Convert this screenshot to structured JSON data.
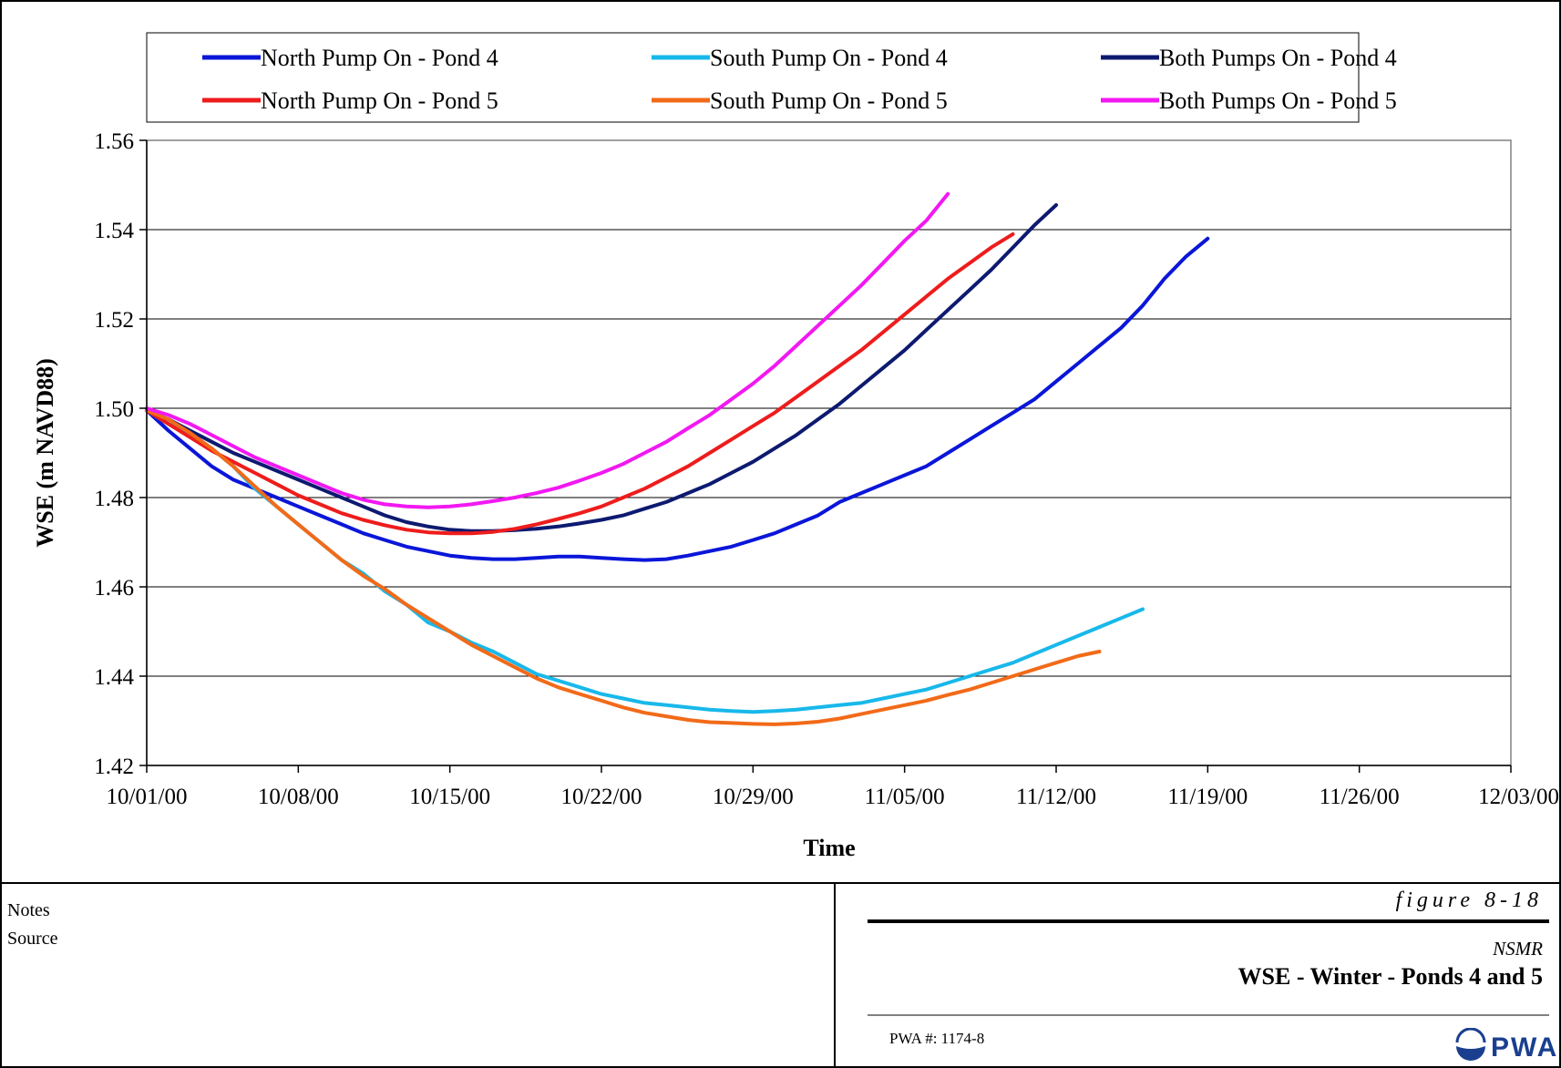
{
  "chart_data": {
    "type": "line",
    "xlabel": "Time",
    "ylabel": "WSE (m NAVD88)",
    "x_ticks": [
      "10/01/00",
      "10/08/00",
      "10/15/00",
      "10/22/00",
      "10/29/00",
      "11/05/00",
      "11/12/00",
      "11/19/00",
      "11/26/00",
      "12/03/00"
    ],
    "x_range_days": [
      0,
      63
    ],
    "ylim": [
      1.42,
      1.56
    ],
    "y_ticks": [
      "1.42",
      "1.44",
      "1.46",
      "1.48",
      "1.50",
      "1.52",
      "1.54",
      "1.56"
    ],
    "grid": "horizontal",
    "legend_position": "top",
    "series": [
      {
        "name": "North Pump On - Pond 4",
        "color": "#0a16d8",
        "x": [
          0,
          1,
          2,
          3,
          4,
          5,
          6,
          7,
          8,
          9,
          10,
          11,
          12,
          13,
          14,
          15,
          16,
          17,
          18,
          19,
          20,
          21,
          22,
          23,
          24,
          25,
          26,
          27,
          28,
          29,
          30,
          31,
          32,
          33,
          34,
          35,
          36,
          37,
          38,
          39,
          40,
          41,
          42,
          43,
          44,
          45,
          46,
          47,
          48,
          49,
          50,
          51,
          52,
          53,
          54,
          55,
          56,
          57,
          58,
          59,
          60,
          61,
          62,
          63
        ],
        "y": [
          1.4995,
          1.495,
          1.491,
          1.487,
          1.484,
          1.482,
          1.48,
          1.478,
          1.476,
          1.474,
          1.472,
          1.4705,
          1.469,
          1.468,
          1.467,
          1.4665,
          1.4662,
          1.4662,
          1.4665,
          1.4668,
          1.4668,
          1.4665,
          1.4662,
          1.466,
          1.4662,
          1.467,
          1.468,
          1.469,
          1.4705,
          1.472,
          1.474,
          1.476,
          1.479,
          1.481,
          1.483,
          1.485,
          1.487,
          1.49,
          1.493,
          1.496,
          1.499,
          1.502,
          1.506,
          1.51,
          1.514,
          1.518,
          1.523,
          1.529,
          1.534,
          1.538,
          null,
          null,
          null,
          null,
          null,
          null,
          null,
          null,
          null,
          null,
          null,
          null,
          null,
          null
        ]
      },
      {
        "name": "South Pump On - Pond 4",
        "color": "#18b8ea",
        "x": [
          0,
          1,
          2,
          3,
          4,
          5,
          6,
          7,
          8,
          9,
          10,
          11,
          12,
          13,
          14,
          15,
          16,
          17,
          18,
          19,
          20,
          21,
          22,
          23,
          24,
          25,
          26,
          27,
          28,
          29,
          30,
          31,
          32,
          33,
          34,
          35,
          36,
          37,
          38,
          39,
          40,
          41,
          42,
          43,
          44,
          45,
          46,
          47,
          48,
          49,
          50,
          51,
          52,
          53,
          54,
          55,
          56,
          57,
          58,
          59,
          60,
          61,
          62,
          63
        ],
        "y": [
          1.4995,
          1.4965,
          1.494,
          1.491,
          1.487,
          1.482,
          1.478,
          1.474,
          1.47,
          1.466,
          1.463,
          1.459,
          1.456,
          1.452,
          1.45,
          1.4475,
          1.4455,
          1.443,
          1.4405,
          1.439,
          1.4375,
          1.436,
          1.435,
          1.434,
          1.4335,
          1.433,
          1.4325,
          1.4322,
          1.432,
          1.4322,
          1.4325,
          1.433,
          1.4335,
          1.434,
          1.435,
          1.436,
          1.437,
          1.4385,
          1.44,
          1.4415,
          1.443,
          1.445,
          1.447,
          1.449,
          1.451,
          1.453,
          1.455,
          null,
          null,
          null,
          null,
          null,
          null,
          null,
          null,
          null,
          null,
          null,
          null,
          null,
          null,
          null,
          null,
          null
        ]
      },
      {
        "name": "Both Pumps On - Pond 4",
        "color": "#0d1a70",
        "x": [
          0,
          1,
          2,
          3,
          4,
          5,
          6,
          7,
          8,
          9,
          10,
          11,
          12,
          13,
          14,
          15,
          16,
          17,
          18,
          19,
          20,
          21,
          22,
          23,
          24,
          25,
          26,
          27,
          28,
          29,
          30,
          31,
          32,
          33,
          34,
          35,
          36,
          37,
          38,
          39,
          40,
          41,
          42,
          43,
          44,
          45,
          46,
          47,
          48,
          49,
          50,
          51,
          52,
          53,
          54,
          55,
          56,
          57,
          58,
          59,
          60,
          61,
          62,
          63
        ],
        "y": [
          1.4995,
          1.4975,
          1.495,
          1.4925,
          1.49,
          1.488,
          1.486,
          1.484,
          1.482,
          1.48,
          1.478,
          1.476,
          1.4745,
          1.4735,
          1.4728,
          1.4725,
          1.4725,
          1.4727,
          1.473,
          1.4735,
          1.4742,
          1.475,
          1.476,
          1.4775,
          1.479,
          1.481,
          1.483,
          1.4855,
          1.488,
          1.491,
          1.494,
          1.4975,
          1.501,
          1.505,
          1.509,
          1.513,
          1.5175,
          1.522,
          1.5265,
          1.531,
          1.536,
          1.541,
          1.5455,
          null,
          null,
          null,
          null,
          null,
          null,
          null,
          null,
          null,
          null,
          null,
          null,
          null,
          null,
          null,
          null,
          null,
          null,
          null,
          null,
          null
        ]
      },
      {
        "name": "North Pump On - Pond 5",
        "color": "#ee1c1c",
        "x": [
          0,
          1,
          2,
          3,
          4,
          5,
          6,
          7,
          8,
          9,
          10,
          11,
          12,
          13,
          14,
          15,
          16,
          17,
          18,
          19,
          20,
          21,
          22,
          23,
          24,
          25,
          26,
          27,
          28,
          29,
          30,
          31,
          32,
          33,
          34,
          35,
          36,
          37,
          38,
          39,
          40,
          41,
          42,
          43,
          44,
          45,
          46,
          47,
          48,
          49,
          50,
          51,
          52,
          53,
          54,
          55,
          56,
          57,
          58,
          59,
          60,
          61,
          62,
          63
        ],
        "y": [
          1.4995,
          1.4965,
          1.4935,
          1.4905,
          1.488,
          1.4855,
          1.483,
          1.4805,
          1.4785,
          1.4765,
          1.475,
          1.4738,
          1.4728,
          1.4722,
          1.472,
          1.472,
          1.4723,
          1.473,
          1.474,
          1.4752,
          1.4765,
          1.478,
          1.48,
          1.482,
          1.4845,
          1.487,
          1.49,
          1.493,
          1.496,
          1.499,
          1.5025,
          1.506,
          1.5095,
          1.513,
          1.517,
          1.521,
          1.525,
          1.529,
          1.5325,
          1.536,
          1.539,
          null,
          null,
          null,
          null,
          null,
          null,
          null,
          null,
          null,
          null,
          null,
          null,
          null,
          null,
          null,
          null,
          null,
          null,
          null,
          null,
          null,
          null,
          null
        ]
      },
      {
        "name": "South Pump On - Pond 5",
        "color": "#f26a18",
        "x": [
          0,
          1,
          2,
          3,
          4,
          5,
          6,
          7,
          8,
          9,
          10,
          11,
          12,
          13,
          14,
          15,
          16,
          17,
          18,
          19,
          20,
          21,
          22,
          23,
          24,
          25,
          26,
          27,
          28,
          29,
          30,
          31,
          32,
          33,
          34,
          35,
          36,
          37,
          38,
          39,
          40,
          41,
          42,
          43,
          44,
          45,
          46,
          47,
          48,
          49,
          50,
          51,
          52,
          53,
          54,
          55,
          56,
          57,
          58,
          59,
          60,
          61,
          62,
          63
        ],
        "y": [
          1.4995,
          1.4975,
          1.4945,
          1.491,
          1.487,
          1.4825,
          1.478,
          1.474,
          1.47,
          1.466,
          1.4625,
          1.4595,
          1.456,
          1.453,
          1.45,
          1.447,
          1.4445,
          1.442,
          1.4395,
          1.4375,
          1.436,
          1.4345,
          1.433,
          1.4318,
          1.431,
          1.4302,
          1.4297,
          1.4295,
          1.4293,
          1.4292,
          1.4294,
          1.4298,
          1.4305,
          1.4315,
          1.4325,
          1.4335,
          1.4345,
          1.4358,
          1.437,
          1.4385,
          1.44,
          1.4415,
          1.443,
          1.4445,
          1.4455,
          null,
          null,
          null,
          null,
          null,
          null,
          null,
          null,
          null,
          null,
          null,
          null,
          null,
          null,
          null,
          null,
          null,
          null,
          null
        ]
      },
      {
        "name": "Both Pumps On - Pond 5",
        "color": "#f218f2",
        "x": [
          0,
          1,
          2,
          3,
          4,
          5,
          6,
          7,
          8,
          9,
          10,
          11,
          12,
          13,
          14,
          15,
          16,
          17,
          18,
          19,
          20,
          21,
          22,
          23,
          24,
          25,
          26,
          27,
          28,
          29,
          30,
          31,
          32,
          33,
          34,
          35,
          36,
          37,
          38,
          39,
          40,
          41,
          42,
          43,
          44,
          45,
          46,
          47,
          48,
          49,
          50,
          51,
          52,
          53,
          54,
          55,
          56,
          57,
          58,
          59,
          60,
          61,
          62,
          63
        ],
        "y": [
          1.5,
          1.4985,
          1.4965,
          1.494,
          1.4915,
          1.489,
          1.487,
          1.485,
          1.483,
          1.481,
          1.4795,
          1.4785,
          1.478,
          1.4778,
          1.478,
          1.4785,
          1.4792,
          1.48,
          1.481,
          1.4822,
          1.4838,
          1.4855,
          1.4875,
          1.49,
          1.4925,
          1.4955,
          1.4985,
          1.502,
          1.5055,
          1.5095,
          1.514,
          1.5185,
          1.523,
          1.5275,
          1.5325,
          1.5375,
          1.542,
          1.548,
          null,
          null,
          null,
          null,
          null,
          null,
          null,
          null,
          null,
          null,
          null,
          null,
          null,
          null,
          null,
          null,
          null,
          null,
          null,
          null,
          null,
          null,
          null,
          null,
          null,
          null
        ]
      }
    ]
  },
  "footer": {
    "notes_label": "Notes",
    "source_label": "Source",
    "figure_label": "figure 8-18",
    "project": "NSMR",
    "title": "WSE - Winter - Ponds 4 and 5",
    "pwa_number": "PWA #:  1174-8",
    "logo_text": "PWA",
    "logo_color": "#1a3f8f"
  }
}
